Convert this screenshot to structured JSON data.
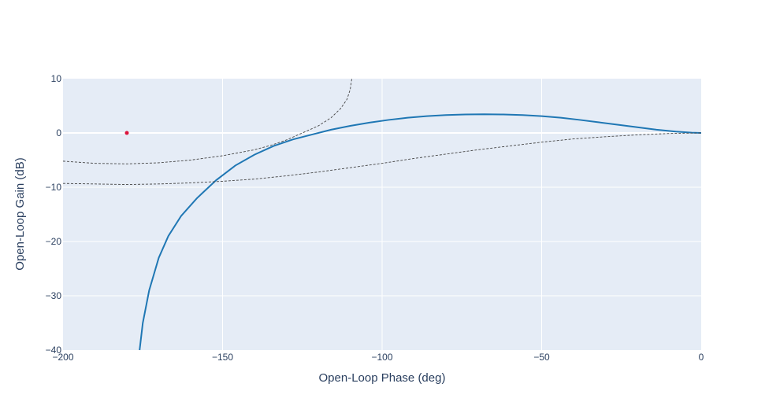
{
  "chart_data": {
    "type": "line",
    "title": "",
    "xlabel": "Open-Loop Phase (deg)",
    "ylabel": "Open-Loop Gain (dB)",
    "xlim": [
      -200,
      0
    ],
    "ylim": [
      -40,
      10
    ],
    "x_ticks": [
      -200,
      -150,
      -100,
      -50,
      0
    ],
    "x_tick_labels": [
      "−200",
      "−150",
      "−100",
      "−50",
      "0"
    ],
    "y_ticks": [
      -40,
      -30,
      -20,
      -10,
      0,
      10
    ],
    "y_tick_labels": [
      "−40",
      "−30",
      "−20",
      "−10",
      "0",
      "10"
    ],
    "grid": true,
    "legend": "none",
    "colors": {
      "plot_background": "#e5ecf6",
      "grid": "#ffffff",
      "main_line": "#1f77b4",
      "guide_lines": "#444444",
      "marker": "#dc143c",
      "text": "#2a3f5f"
    },
    "series": [
      {
        "style": "solid",
        "x": [
          -176,
          -175,
          -173,
          -170,
          -167,
          -163,
          -158,
          -152,
          -146,
          -140,
          -134,
          -128,
          -122,
          -116,
          -110,
          -104,
          -98,
          -92,
          -86,
          -80,
          -74,
          -68,
          -62,
          -56,
          -50,
          -44,
          -38,
          -32,
          -26,
          -20,
          -14,
          -8,
          -3,
          0
        ],
        "y": [
          -40,
          -35,
          -29,
          -23,
          -19,
          -15.3,
          -12,
          -8.7,
          -6,
          -4,
          -2.4,
          -1.2,
          -0.3,
          0.6,
          1.3,
          1.9,
          2.4,
          2.8,
          3.1,
          3.3,
          3.4,
          3.45,
          3.4,
          3.3,
          3.1,
          2.8,
          2.4,
          1.95,
          1.5,
          1.05,
          0.6,
          0.25,
          0.05,
          0
        ]
      },
      {
        "style": "dotted",
        "x": [
          -200,
          -190,
          -180,
          -170,
          -160,
          -150,
          -140,
          -135,
          -130,
          -125,
          -120,
          -116,
          -113,
          -111,
          -110,
          -109.5
        ],
        "y": [
          -5.2,
          -5.6,
          -5.7,
          -5.5,
          -5.0,
          -4.2,
          -3.1,
          -2.3,
          -1.3,
          0,
          1.3,
          2.8,
          4.5,
          6.2,
          8.0,
          10
        ]
      },
      {
        "style": "dotted",
        "x": [
          -200,
          -190,
          -180,
          -170,
          -160,
          -150,
          -140,
          -130,
          -120,
          -110,
          -100,
          -90,
          -80,
          -70,
          -60,
          -50,
          -40,
          -30,
          -20,
          -10,
          -5,
          0
        ],
        "y": [
          -9.3,
          -9.4,
          -9.5,
          -9.4,
          -9.2,
          -8.9,
          -8.5,
          -7.9,
          -7.2,
          -6.4,
          -5.6,
          -4.7,
          -3.9,
          -3.1,
          -2.4,
          -1.7,
          -1.1,
          -0.7,
          -0.35,
          -0.1,
          -0.05,
          0
        ]
      }
    ],
    "markers": [
      {
        "x": -180,
        "y": 0
      }
    ]
  }
}
